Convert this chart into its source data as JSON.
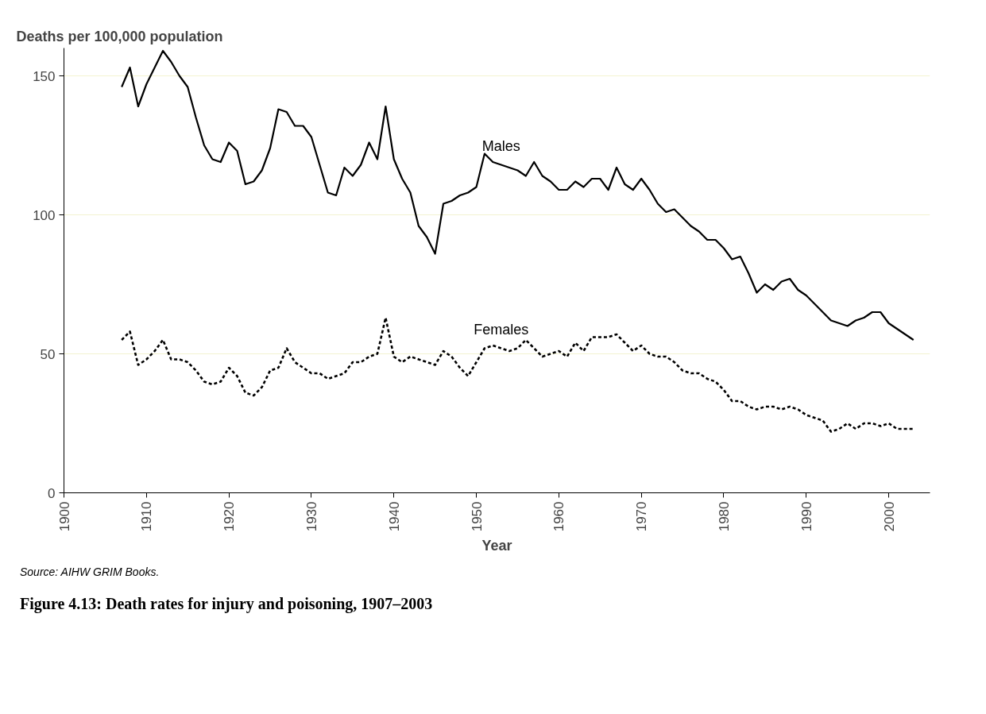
{
  "chart_data": {
    "type": "line",
    "title": "Figure 4.13: Death rates for injury and poisoning, 1907–2003",
    "xlabel": "Year",
    "ylabel": "Deaths per 100,000 population",
    "annotations": [
      "Source: AIHW GRIM Books."
    ],
    "x": [
      1907,
      1908,
      1909,
      1910,
      1911,
      1912,
      1913,
      1914,
      1915,
      1916,
      1917,
      1918,
      1919,
      1920,
      1921,
      1922,
      1923,
      1924,
      1925,
      1926,
      1927,
      1928,
      1929,
      1930,
      1931,
      1932,
      1933,
      1934,
      1935,
      1936,
      1937,
      1938,
      1939,
      1940,
      1941,
      1942,
      1943,
      1944,
      1945,
      1946,
      1947,
      1948,
      1949,
      1950,
      1951,
      1952,
      1953,
      1954,
      1955,
      1956,
      1957,
      1958,
      1959,
      1960,
      1961,
      1962,
      1963,
      1964,
      1965,
      1966,
      1967,
      1968,
      1969,
      1970,
      1971,
      1972,
      1973,
      1974,
      1975,
      1976,
      1977,
      1978,
      1979,
      1980,
      1981,
      1982,
      1983,
      1984,
      1985,
      1986,
      1987,
      1988,
      1989,
      1990,
      1991,
      1992,
      1993,
      1994,
      1995,
      1996,
      1997,
      1998,
      1999,
      2000,
      2001,
      2002,
      2003
    ],
    "series": [
      {
        "name": "Males",
        "color": "#000000",
        "line_style": "solid",
        "values": [
          146,
          153,
          139,
          147,
          153,
          159,
          155,
          150,
          146,
          135,
          125,
          120,
          119,
          126,
          123,
          111,
          112,
          116,
          124,
          138,
          137,
          132,
          132,
          128,
          118,
          108,
          107,
          117,
          114,
          118,
          126,
          120,
          139,
          120,
          113,
          108,
          96,
          92,
          86,
          104,
          105,
          107,
          108,
          110,
          122,
          119,
          118,
          117,
          116,
          114,
          119,
          114,
          112,
          109,
          109,
          112,
          110,
          113,
          113,
          109,
          117,
          111,
          109,
          113,
          109,
          104,
          101,
          102,
          99,
          96,
          94,
          91,
          91,
          88,
          84,
          85,
          79,
          72,
          75,
          73,
          76,
          77,
          73,
          71,
          68,
          65,
          62,
          61,
          60,
          62,
          63,
          65,
          65,
          61,
          59,
          57,
          55
        ]
      },
      {
        "name": "Females",
        "color": "#000000",
        "line_style": "dashed",
        "values": [
          55,
          58,
          46,
          48,
          51,
          55,
          48,
          48,
          47,
          44,
          40,
          39,
          40,
          45,
          42,
          36,
          35,
          38,
          44,
          45,
          52,
          47,
          45,
          43,
          43,
          41,
          42,
          43,
          47,
          47,
          49,
          50,
          63,
          49,
          47,
          49,
          48,
          47,
          46,
          51,
          49,
          45,
          42,
          47,
          52,
          53,
          52,
          51,
          52,
          55,
          52,
          49,
          50,
          51,
          49,
          54,
          51,
          56,
          56,
          56,
          57,
          54,
          51,
          53,
          50,
          49,
          49,
          47,
          44,
          43,
          43,
          41,
          40,
          37,
          33,
          33,
          31,
          30,
          31,
          31,
          30,
          31,
          30,
          28,
          27,
          26,
          22,
          23,
          25,
          23,
          25,
          25,
          24,
          25,
          23,
          23,
          23
        ]
      }
    ],
    "xlim": [
      1900,
      2005
    ],
    "xticks": [
      1900,
      1910,
      1920,
      1930,
      1940,
      1950,
      1960,
      1970,
      1980,
      1990,
      2000
    ],
    "ylim": [
      0,
      160
    ],
    "yticks": [
      0,
      50,
      100,
      150
    ],
    "grid": "y",
    "legend": false,
    "marker": "none"
  }
}
